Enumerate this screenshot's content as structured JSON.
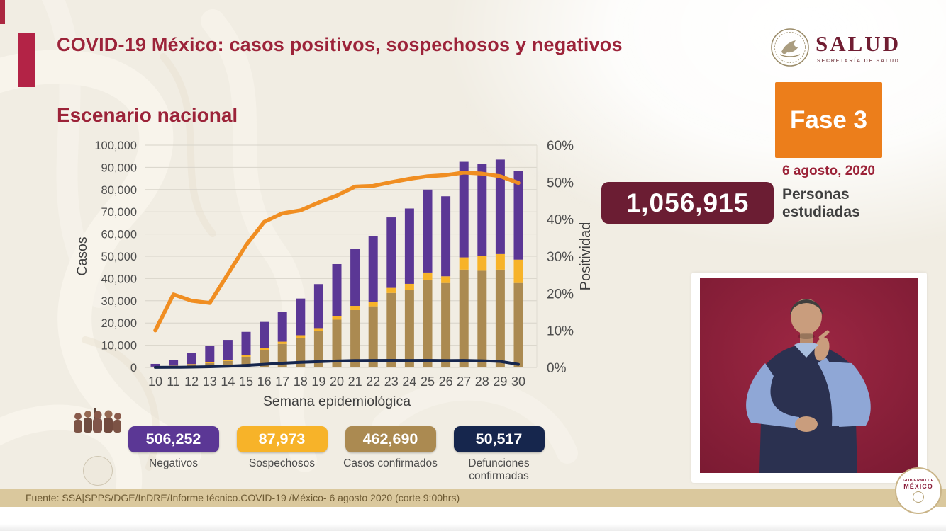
{
  "header": {
    "title": "COVID-19 México: casos positivos, sospechosos y negativos",
    "accent_color": "#9c2339"
  },
  "logo": {
    "title": "SALUD",
    "subtitle": "SECRETARÍA DE SALUD"
  },
  "section_title": "Escenario nacional",
  "phase": {
    "label": "Fase 3",
    "date": "6 agosto, 2020",
    "color": "#ec7e1b"
  },
  "studied": {
    "value": "1,056,915",
    "label": "Personas estudiadas",
    "box_color": "#6b1d33"
  },
  "chart_data": {
    "type": "bar",
    "subtype": "stacked-bars-with-lines",
    "x": [
      10,
      11,
      12,
      13,
      14,
      15,
      16,
      17,
      18,
      19,
      20,
      21,
      22,
      23,
      24,
      25,
      26,
      27,
      28,
      29,
      30
    ],
    "xlabel": "Semana epidemiológica",
    "ylabel_left": "Casos",
    "ylabel_right": "Positividad",
    "ylim_left": [
      0,
      100000
    ],
    "ylim_right_pct": [
      0,
      60
    ],
    "grid": true,
    "yticks_left": [
      "0",
      "10,000",
      "20,000",
      "30,000",
      "40,000",
      "50,000",
      "60,000",
      "70,000",
      "80,000",
      "90,000",
      "100,000"
    ],
    "yticks_right": [
      "0%",
      "10%",
      "20%",
      "30%",
      "40%",
      "50%",
      "60%"
    ],
    "stacked_series": [
      {
        "name": "Casos confirmados",
        "color": "#ab8a51",
        "values": [
          250,
          700,
          1250,
          1900,
          2900,
          4800,
          7800,
          10600,
          13300,
          16300,
          21500,
          25800,
          27500,
          33500,
          35000,
          39500,
          38000,
          44000,
          43500,
          44000,
          38000
        ]
      },
      {
        "name": "Sospechosos",
        "color": "#f7b329",
        "values": [
          100,
          150,
          250,
          350,
          500,
          700,
          900,
          1000,
          1200,
          1400,
          1700,
          1900,
          2100,
          2300,
          2600,
          3200,
          3000,
          5500,
          6500,
          7000,
          10500
        ]
      },
      {
        "name": "Negativos",
        "color": "#5b3795",
        "values": [
          1250,
          2550,
          5100,
          7450,
          9000,
          10500,
          11800,
          13400,
          16500,
          19800,
          23300,
          25800,
          29400,
          31700,
          33900,
          37300,
          36000,
          43000,
          41500,
          42500,
          40000
        ]
      }
    ],
    "line_series": [
      {
        "name": "Positividad",
        "axis": "right",
        "color": "#f08e22",
        "values_pct": [
          10,
          19.7,
          18,
          17.4,
          25.2,
          33,
          39.3,
          41.6,
          42.4,
          44.5,
          46.4,
          48.8,
          49,
          50,
          50.9,
          51.6,
          51.9,
          52.6,
          52.3,
          51.6,
          49.8
        ]
      },
      {
        "name": "Defunciones confirmadas",
        "axis": "left",
        "color": "#16264d",
        "values": [
          20,
          60,
          150,
          300,
          550,
          900,
          1400,
          1900,
          2300,
          2600,
          2900,
          3100,
          3150,
          3200,
          3150,
          3200,
          3100,
          3150,
          3000,
          2700,
          1400
        ]
      }
    ]
  },
  "summary_badges": [
    {
      "value": "506,252",
      "label": "Negativos",
      "color": "#5b3795"
    },
    {
      "value": "87,973",
      "label": "Sospechosos",
      "color": "#f7b329"
    },
    {
      "value": "462,690",
      "label": "Casos confirmados",
      "color": "#ab8a51"
    },
    {
      "value": "50,517",
      "label": "Defunciones confirmadas",
      "color": "#16264d"
    }
  ],
  "interpreter": {
    "background_color": "#8e1c38"
  },
  "footer": {
    "source": "Fuente: SSA|SPPS/DGE/InDRE/Informe técnico.COVID-19 /México- 6 agosto 2020 (corte 9:00hrs)",
    "bar_color": "#dac89d"
  },
  "gob_badge": {
    "line1": "GOBIERNO DE",
    "line2": "MÉXICO"
  }
}
